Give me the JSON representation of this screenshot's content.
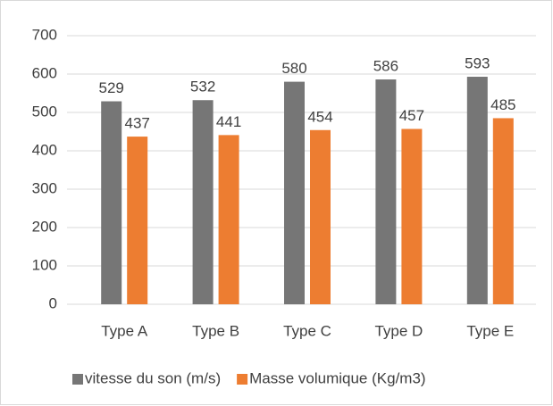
{
  "chart_data": {
    "type": "bar",
    "categories": [
      "Type A",
      "Type B",
      "Type C",
      "Type D",
      "Type E"
    ],
    "series": [
      {
        "name": "vitesse du son (m/s)",
        "color": "#767676",
        "values": [
          529,
          532,
          580,
          586,
          593
        ]
      },
      {
        "name": "Masse volumique (Kg/m3)",
        "color": "#ed7d31",
        "values": [
          437,
          441,
          454,
          457,
          485
        ]
      }
    ],
    "ylim": [
      0,
      700
    ],
    "yticks": [
      0,
      100,
      200,
      300,
      400,
      500,
      600,
      700
    ],
    "grid": true,
    "legend": "bottom"
  }
}
